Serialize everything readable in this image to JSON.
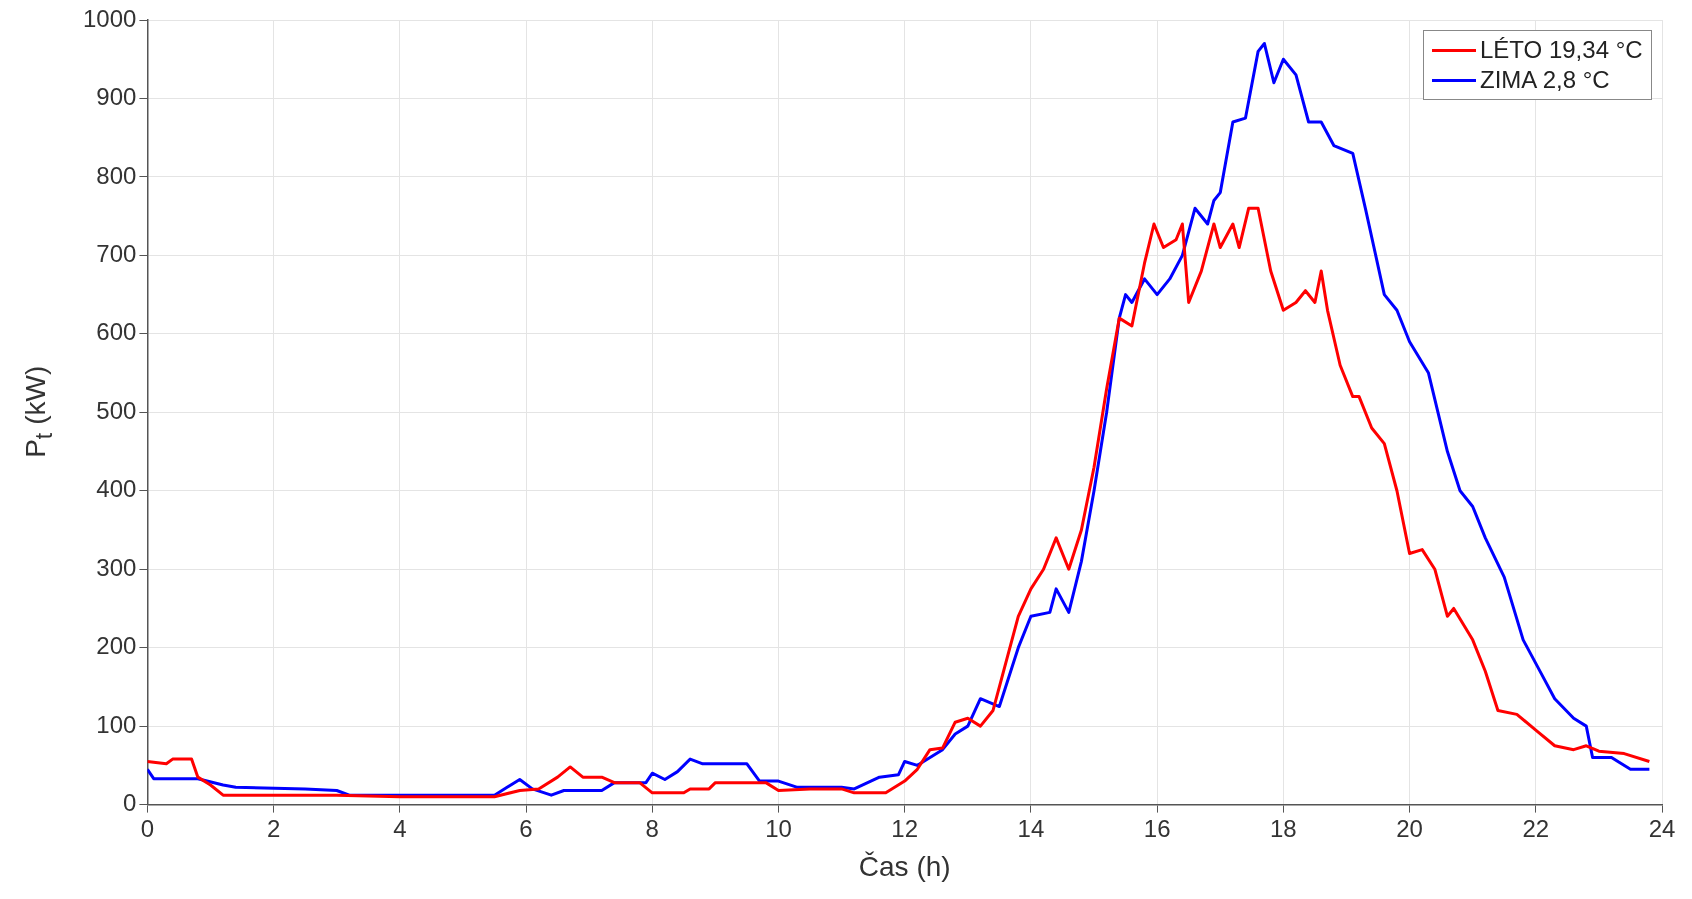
{
  "chart_data": {
    "type": "line",
    "xlabel": "Čas (h)",
    "ylabel": "P$_{t}$ (kW)",
    "xlim": [
      0,
      24
    ],
    "xticks": [
      0,
      2,
      4,
      6,
      8,
      10,
      12,
      14,
      16,
      18,
      20,
      22,
      24
    ],
    "ylim": [
      0,
      1000
    ],
    "yticks": [
      0,
      100,
      200,
      300,
      400,
      500,
      600,
      700,
      800,
      900,
      1000
    ],
    "grid": true,
    "legend": "top right",
    "marker": "none",
    "line_style": "solid",
    "series": [
      {
        "name": "LÉTO 19,34 °C",
        "color": "#ff0000",
        "x": [
          0,
          0.3,
          0.4,
          0.7,
          0.8,
          1.0,
          1.2,
          2,
          3,
          4,
          5,
          5.5,
          5.9,
          6.2,
          6.5,
          6.7,
          6.9,
          7.2,
          7.4,
          7.8,
          8.0,
          8.5,
          8.6,
          8.9,
          9.0,
          9.8,
          10,
          10.5,
          11,
          11.2,
          11.7,
          12.0,
          12.2,
          12.4,
          12.6,
          12.8,
          13.0,
          13.2,
          13.4,
          13.6,
          13.8,
          14.0,
          14.2,
          14.4,
          14.6,
          14.8,
          15.0,
          15.2,
          15.4,
          15.6,
          15.8,
          15.95,
          16.1,
          16.3,
          16.4,
          16.5,
          16.7,
          16.9,
          17.0,
          17.2,
          17.3,
          17.45,
          17.6,
          17.8,
          18.0,
          18.2,
          18.35,
          18.5,
          18.6,
          18.7,
          18.9,
          19.1,
          19.2,
          19.4,
          19.6,
          19.8,
          20.0,
          20.2,
          20.4,
          20.6,
          20.7,
          21.0,
          21.2,
          21.4,
          21.7,
          22.0,
          22.3,
          22.6,
          22.8,
          23.0,
          23.4,
          23.8
        ],
        "values": [
          55,
          52,
          58,
          58,
          35,
          25,
          12,
          12,
          12,
          10,
          10,
          10,
          18,
          20,
          35,
          48,
          35,
          35,
          28,
          28,
          15,
          15,
          20,
          20,
          28,
          28,
          18,
          20,
          20,
          15,
          15,
          30,
          45,
          70,
          72,
          105,
          110,
          100,
          120,
          180,
          240,
          275,
          300,
          340,
          300,
          350,
          430,
          530,
          620,
          610,
          690,
          740,
          710,
          720,
          740,
          640,
          680,
          740,
          710,
          740,
          710,
          760,
          760,
          680,
          630,
          640,
          655,
          640,
          680,
          630,
          560,
          520,
          520,
          480,
          460,
          400,
          320,
          325,
          300,
          240,
          250,
          210,
          170,
          120,
          115,
          95,
          75,
          70,
          75,
          68,
          65,
          55
        ]
      },
      {
        "name": "ZIMA 2,8 °C",
        "color": "#0000ff",
        "x": [
          0,
          0.1,
          0.8,
          1.2,
          1.4,
          2.5,
          3,
          3.2,
          5.5,
          5.7,
          5.9,
          6.1,
          6.4,
          6.6,
          7.2,
          7.4,
          7.9,
          8.0,
          8.2,
          8.4,
          8.6,
          8.8,
          9.5,
          9.7,
          10,
          10.3,
          11,
          11.2,
          11.6,
          11.9,
          12.0,
          12.2,
          12.6,
          12.8,
          13.0,
          13.2,
          13.5,
          13.8,
          14.0,
          14.3,
          14.4,
          14.6,
          14.8,
          15.0,
          15.2,
          15.4,
          15.5,
          15.6,
          15.8,
          16.0,
          16.2,
          16.4,
          16.6,
          16.8,
          16.9,
          17.0,
          17.2,
          17.4,
          17.6,
          17.7,
          17.85,
          18.0,
          18.2,
          18.4,
          18.6,
          18.8,
          19.1,
          19.3,
          19.6,
          19.8,
          20.0,
          20.3,
          20.6,
          20.8,
          21.0,
          21.2,
          21.5,
          21.8,
          22.1,
          22.3,
          22.6,
          22.8,
          22.9,
          23.2,
          23.5,
          23.8
        ],
        "values": [
          45,
          33,
          33,
          25,
          22,
          20,
          18,
          12,
          12,
          22,
          32,
          20,
          12,
          18,
          18,
          28,
          28,
          40,
          32,
          42,
          58,
          52,
          52,
          30,
          30,
          22,
          22,
          20,
          35,
          38,
          55,
          50,
          70,
          90,
          100,
          135,
          125,
          200,
          240,
          245,
          275,
          245,
          310,
          400,
          500,
          620,
          650,
          640,
          670,
          650,
          670,
          700,
          760,
          740,
          770,
          780,
          870,
          875,
          960,
          970,
          920,
          950,
          930,
          870,
          870,
          840,
          830,
          760,
          650,
          630,
          590,
          550,
          450,
          400,
          380,
          340,
          290,
          210,
          165,
          135,
          110,
          100,
          60,
          60,
          45,
          45
        ]
      }
    ]
  }
}
